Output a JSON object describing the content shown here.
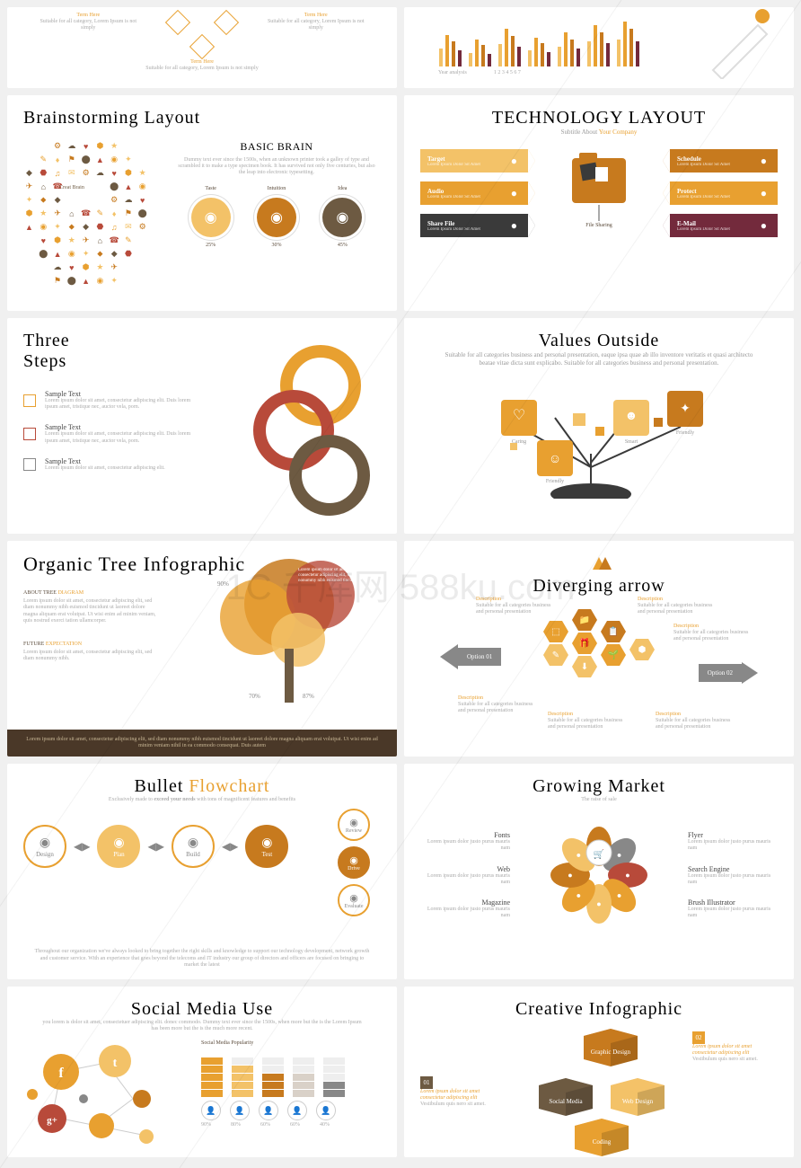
{
  "watermark": "1C 千库网\n588ku.com",
  "colors": {
    "orange": "#e8a030",
    "lorange": "#f3c268",
    "dorange": "#c77a1e",
    "brown": "#6d5a42",
    "maroon": "#732a3c",
    "red": "#b84a3a",
    "gray": "#888888",
    "lgray": "#d9d1c8",
    "dark": "#3a3a3a",
    "cream": "#f5efe2"
  },
  "s1": {
    "terms": [
      {
        "t": "Term Here",
        "s": "Suitable for all category, Lorem Ipsum is not simply"
      },
      {
        "t": "Term Here",
        "s": "Suitable for all category, Lorem Ipsum is not simply"
      },
      {
        "t": "Term Here",
        "s": "Suitable for all category, Lorem Ipsum is not simply"
      }
    ]
  },
  "s2": {
    "axis": "Year analysis",
    "ticks": [
      "1",
      "2",
      "3",
      "4",
      "5",
      "6",
      "7"
    ],
    "bars": [
      [
        20,
        35,
        28,
        18
      ],
      [
        15,
        30,
        24,
        14
      ],
      [
        25,
        42,
        34,
        22
      ],
      [
        18,
        32,
        26,
        16
      ],
      [
        22,
        38,
        30,
        20
      ],
      [
        28,
        46,
        38,
        26
      ],
      [
        30,
        50,
        42,
        28
      ]
    ],
    "barColors": [
      "#f3c268",
      "#e8a030",
      "#c77a1e",
      "#732a3c"
    ]
  },
  "s3": {
    "title": "Brainstorming Layout",
    "btitle": "BASIC BRAIN",
    "bsub": "Dummy text ever since the 1500s, when an unknown printer took a galley of type and scrambled it to make a type specimen book. It has survived not only five centuries, but also the leap into electronic typesetting.",
    "head": "Creat Brain",
    "items": [
      {
        "label": "Taste",
        "pct": "25%",
        "color": "#f3c268"
      },
      {
        "label": "Intuition",
        "pct": "30%",
        "color": "#c77a1e"
      },
      {
        "label": "Idea",
        "pct": "45%",
        "color": "#6d5a42"
      }
    ]
  },
  "s4": {
    "title": "TECHNOLOGY LAYOUT",
    "sub": "Subtitle About ",
    "sub2": "Your Company",
    "center": "File Sharing",
    "left": [
      {
        "t": "Target",
        "s": "Lorem Ipsum Dolor Sit Amet",
        "c": "#f3c268"
      },
      {
        "t": "Audio",
        "s": "Lorem Ipsum Dolor Sit Amet",
        "c": "#e8a030"
      },
      {
        "t": "Share File",
        "s": "Lorem Ipsum Dolor Sit Amet",
        "c": "#3a3a3a"
      }
    ],
    "right": [
      {
        "t": "Schedule",
        "s": "Lorem Ipsum Dolor Sit Amet",
        "c": "#c77a1e"
      },
      {
        "t": "Protect",
        "s": "Lorem Ipsum Dolor Sit Amet",
        "c": "#e8a030"
      },
      {
        "t": "E-Mail",
        "s": "Lorem Ipsum Dolor Sit Amet",
        "c": "#732a3c"
      }
    ]
  },
  "s5": {
    "title": "Three Steps",
    "items": [
      {
        "t": "Sample Text",
        "s": "Lorem ipsum dolor sit amet, consectetur adipiscing elit. Duis lorem ipsum amet, tristique nec, auctor vela, porn.",
        "c": "#e8a030"
      },
      {
        "t": "Sample Text",
        "s": "Lorem ipsum dolor sit amet, consectetur adipiscing elit. Duis lorem ipsum amet, tristique nec, auctor vela, porn.",
        "c": "#b84a3a"
      },
      {
        "t": "Sample Text",
        "s": "Lorem ipsum dolor sit amet, consectetur adipiscing elit.",
        "c": "#888888"
      }
    ],
    "rings": [
      {
        "c": "#e8a030"
      },
      {
        "c": "#b84a3a"
      },
      {
        "c": "#6d5a42"
      }
    ]
  },
  "s6": {
    "title": "Values Outside",
    "sub": "Suitable for all categories business and personal presentation, eaque ipsa quae ab illo inventore veritatis et quasi architecto beatae vitae dicta sunt explicabo. Suitable for all categories business and personal presentation.",
    "nodes": [
      {
        "t": "Caring",
        "c": "#e8a030"
      },
      {
        "t": "Smart",
        "c": "#f3c268"
      },
      {
        "t": "Friendly",
        "c": "#c77a1e"
      },
      {
        "t": "Friendly",
        "c": "#e8a030"
      }
    ]
  },
  "s7": {
    "title": "Organic Tree Infographic",
    "about_h": "ABOUT TREE ",
    "about_h2": "DIAGRAM",
    "about": "Lorem ipsum dolor sit amet, consectetur adipiscing elit, sed diam nonummy nibh euismod tincidunt ut laoreet dolore magna aliquam erat volutpat. Ut wisi enim ad minim veniam, quis nostrud exerci tation ullamcorper.",
    "future_h": "FUTURE ",
    "future_h2": "EXPECTATION",
    "future": "Lorem ipsum dolor sit amet, consectetur adipiscing elit, sed diam nonummy nibh.",
    "pcts": [
      "90%",
      "70%",
      "87%"
    ],
    "bubble": "Lorem ipsum dolor sit amet, consectetur adipiscing elit, sed diam nonummy nibh euismod tincidunt ut.",
    "footer": "Lorem ipsum dolor sit amet, consectetur adipiscing elit, sed diam nonummy nibh euismod tincidunt ut laoreet dolore magna aliquam erat volutpat. Ut wisi enim ad minim veniam nihil in ea commodo consequat. Duis autem"
  },
  "s8": {
    "title": "Diverging arrow",
    "opts": [
      "Option 01",
      "Option 02"
    ],
    "desc_h": "Description",
    "desc": "Suitable for all categories business and personal presentation"
  },
  "s9": {
    "title": "Bullet ",
    "title2": "Flowchart",
    "sub": "Exclusively made to ",
    "sub2": "exceed your needs",
    " sub3": " with tons of magnificent features and benefits",
    "steps": [
      {
        "t": "Design",
        "c": "#ffffff",
        "bc": "#e8a030"
      },
      {
        "t": "Plan",
        "c": "#f3c268"
      },
      {
        "t": "Build",
        "c": "#ffffff",
        "bc": "#e8a030"
      },
      {
        "t": "Test",
        "c": "#c77a1e"
      }
    ],
    "branches": [
      {
        "t": "Review",
        "c": "#ffffff",
        "bc": "#e8a030"
      },
      {
        "t": "Drive",
        "c": "#c77a1e"
      },
      {
        "t": "Evaluate",
        "c": "#ffffff",
        "bc": "#e8a030"
      }
    ],
    "footer": "Throughout our organization we've always looked to bring together the right skills and knowledge to support our technology development, network growth and customer service. With an experience that goes beyond the telecoms and IT industry our group of directors and officers are focused on bringing to market the latest"
  },
  "s10": {
    "title": "Growing Market",
    "sub": "The raise of sale",
    "left": [
      {
        "t": "Fonts",
        "s": "Lorem ipsum dolor justo purus mauris nam"
      },
      {
        "t": "Web",
        "s": "Lorem ipsum dolor justo purus mauris nam"
      },
      {
        "t": "Magazine",
        "s": "Lorem ipsum dolor justo purus mauris nam"
      }
    ],
    "right": [
      {
        "t": "Flyer",
        "s": "Lorem ipsum dolor justo purus mauris nam"
      },
      {
        "t": "Search Engine",
        "s": "Lorem ipsum dolor justo purus mauris nam"
      },
      {
        "t": "Brush Illustrator",
        "s": "Lorem ipsum dolor justo purus mauris nam"
      }
    ],
    "petals": [
      "#c77a1e",
      "#888",
      "#b84a3a",
      "#e8a030",
      "#f3c268",
      "#e8a030",
      "#c77a1e",
      "#f3c268"
    ]
  },
  "s11": {
    "title": "Social Media Use",
    "sub": "you lorem is dolor sit amet, consectetuer adipiscing elit. donec commodo. Dummy text ever since the 1500s, when more but the is the Lorem Ipsum has been more but the is the much more recent.",
    "chart_title": "Social Media Popularity",
    "networks": [
      {
        "n": "f",
        "c": "#e8a030"
      },
      {
        "n": "t",
        "c": "#f3c268"
      },
      {
        "n": "g+",
        "c": "#b84a3a"
      },
      {
        "n": "in",
        "c": "#c77a1e"
      },
      {
        "n": "ig",
        "c": "#e8a030"
      }
    ],
    "bars": [
      {
        "pct": "90%",
        "v": 90
      },
      {
        "pct": "80%",
        "v": 80
      },
      {
        "pct": "60%",
        "v": 60
      },
      {
        "pct": "60%",
        "v": 60
      },
      {
        "pct": "40%",
        "v": 40
      }
    ]
  },
  "s12": {
    "title": "Creative Infographic",
    "blocks": [
      {
        "t": "Graphic Design",
        "c": "#c77a1e"
      },
      {
        "t": "Social Media",
        "c": "#6d5a42"
      },
      {
        "t": "Web Design",
        "c": "#f3c268"
      },
      {
        "t": "Coding",
        "c": "#e8a030"
      }
    ],
    "keys": [
      {
        "n": "01",
        "t": "Lorem ipsum dolor sit amet consectetur adipiscing elit",
        "s": "Vestibulum quis nero sit amet."
      },
      {
        "n": "02",
        "t": "Lorem ipsum dolor sit amet consectetur adipiscing elit",
        "s": "Vestibulum quis nero sit amet."
      }
    ]
  }
}
